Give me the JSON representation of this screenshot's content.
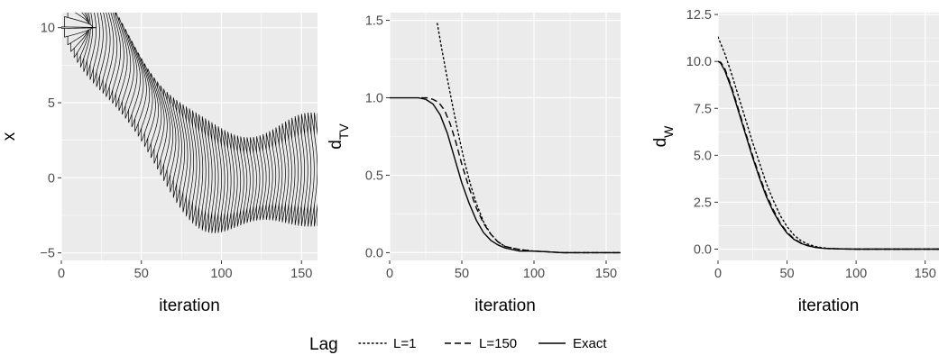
{
  "chart_data": [
    {
      "type": "ridgeline",
      "xlabel": "iteration",
      "ylabel": "x",
      "xlim": [
        0,
        160
      ],
      "ylim": [
        -5.5,
        11
      ],
      "x_ticks": [
        0,
        50,
        100,
        150
      ],
      "y_ticks": [
        -5,
        0,
        5,
        10
      ],
      "x_tick_labels": [
        "0",
        "50",
        "100",
        "150"
      ],
      "y_tick_labels": [
        "−5",
        "0",
        "5",
        "10"
      ],
      "density_every": 2,
      "density_iterations": [
        0,
        160
      ],
      "centre_start": 10,
      "centre_end": 0,
      "spread_final": 3.3
    },
    {
      "type": "line",
      "xlabel": "iteration",
      "ylabel_main": "d",
      "ylabel_sub": "TV",
      "xlim": [
        0,
        160
      ],
      "ylim": [
        -0.05,
        1.55
      ],
      "x_ticks": [
        0,
        50,
        100,
        150
      ],
      "y_ticks": [
        0.0,
        0.5,
        1.0,
        1.5
      ],
      "x_tick_labels": [
        "0",
        "50",
        "100",
        "150"
      ],
      "y_tick_labels": [
        "0.0",
        "0.5",
        "1.0",
        "1.5"
      ],
      "series": [
        {
          "name": "L=1",
          "style": "dotted",
          "x": [
            33,
            36,
            40,
            44,
            48,
            52,
            56,
            60,
            65,
            70,
            75,
            80,
            90,
            100,
            120,
            140,
            160
          ],
          "y": [
            1.48,
            1.32,
            1.12,
            0.93,
            0.75,
            0.58,
            0.44,
            0.32,
            0.2,
            0.12,
            0.07,
            0.04,
            0.02,
            0.01,
            0.0,
            0.0,
            0.0
          ]
        },
        {
          "name": "L=150",
          "style": "dashed",
          "x": [
            22,
            26,
            30,
            34,
            38,
            42,
            46,
            50,
            55,
            60,
            65,
            70,
            75,
            80,
            90,
            100,
            120,
            140,
            160
          ],
          "y": [
            1.0,
            1.0,
            0.99,
            0.97,
            0.92,
            0.83,
            0.71,
            0.57,
            0.42,
            0.29,
            0.19,
            0.12,
            0.07,
            0.04,
            0.02,
            0.01,
            0.0,
            0.0,
            0.0
          ]
        },
        {
          "name": "Exact",
          "style": "solid",
          "x": [
            0,
            10,
            20,
            25,
            30,
            35,
            40,
            45,
            50,
            55,
            60,
            65,
            70,
            75,
            80,
            90,
            100,
            120,
            140,
            160
          ],
          "y": [
            1.0,
            1.0,
            1.0,
            0.99,
            0.96,
            0.89,
            0.77,
            0.61,
            0.45,
            0.32,
            0.21,
            0.13,
            0.08,
            0.05,
            0.03,
            0.01,
            0.01,
            0.0,
            0.0,
            0.0
          ]
        }
      ]
    },
    {
      "type": "line",
      "xlabel": "iteration",
      "ylabel_main": "d",
      "ylabel_sub": "W",
      "xlim": [
        0,
        160
      ],
      "ylim": [
        -0.6,
        12.6
      ],
      "x_ticks": [
        0,
        50,
        100,
        150
      ],
      "y_ticks": [
        0.0,
        2.5,
        5.0,
        7.5,
        10.0,
        12.5
      ],
      "x_tick_labels": [
        "0",
        "50",
        "100",
        "150"
      ],
      "y_tick_labels": [
        "0.0",
        "2.5",
        "5.0",
        "7.5",
        "10.0",
        "12.5"
      ],
      "series": [
        {
          "name": "L=1",
          "style": "dotted",
          "x": [
            0,
            5,
            10,
            15,
            20,
            25,
            30,
            35,
            40,
            45,
            50,
            55,
            60,
            65,
            70,
            75,
            80,
            90,
            100,
            120,
            140,
            160
          ],
          "y": [
            11.3,
            10.4,
            9.3,
            8.1,
            6.9,
            5.7,
            4.6,
            3.5,
            2.6,
            1.8,
            1.2,
            0.75,
            0.45,
            0.27,
            0.15,
            0.08,
            0.04,
            0.01,
            0.0,
            0.0,
            0.0,
            0.0
          ]
        },
        {
          "name": "L=150",
          "style": "dashed",
          "x": [
            0,
            2,
            5,
            10,
            15,
            20,
            25,
            30,
            35,
            40,
            45,
            50,
            55,
            60,
            65,
            70,
            75,
            80,
            90,
            100,
            120,
            140,
            160
          ],
          "y": [
            10.0,
            9.95,
            9.6,
            8.6,
            7.4,
            6.2,
            5.0,
            3.9,
            2.9,
            2.1,
            1.4,
            0.9,
            0.55,
            0.33,
            0.19,
            0.1,
            0.05,
            0.03,
            0.01,
            0.0,
            0.0,
            0.0,
            0.0
          ]
        },
        {
          "name": "Exact",
          "style": "solid",
          "x": [
            0,
            2,
            5,
            10,
            15,
            20,
            25,
            30,
            35,
            40,
            45,
            50,
            55,
            60,
            65,
            70,
            75,
            80,
            90,
            100,
            120,
            140,
            160
          ],
          "y": [
            10.0,
            9.9,
            9.5,
            8.5,
            7.3,
            6.1,
            4.9,
            3.8,
            2.8,
            2.0,
            1.35,
            0.85,
            0.52,
            0.31,
            0.18,
            0.1,
            0.05,
            0.03,
            0.01,
            0.0,
            0.0,
            0.0,
            0.0
          ]
        }
      ]
    }
  ],
  "legend": {
    "title": "Lag",
    "position": "bottom",
    "items": [
      {
        "label": "L=1",
        "style": "dotted"
      },
      {
        "label": "L=150",
        "style": "dashed"
      },
      {
        "label": "Exact",
        "style": "solid"
      }
    ]
  },
  "colors": {
    "panel_bg": "#ebebeb",
    "grid": "#ffffff",
    "ink": "#000000",
    "tick_text": "#4d4d4d",
    "tick_mark": "#333333"
  }
}
